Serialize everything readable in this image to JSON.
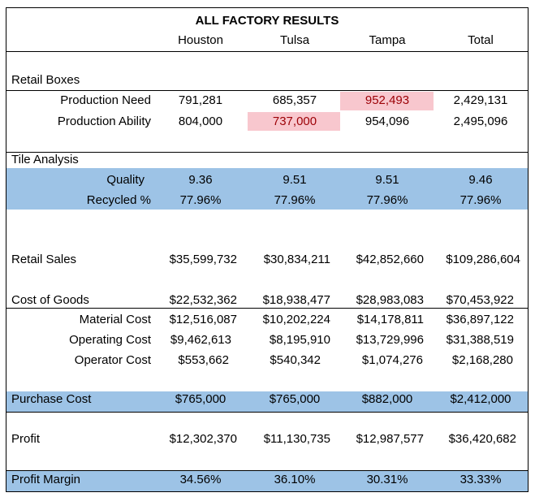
{
  "title": "ALL FACTORY RESULTS",
  "columns": [
    "Houston",
    "Tulsa",
    "Tampa",
    "Total"
  ],
  "colors": {
    "band": "#9dc3e6",
    "highlight_fill": "#f8c7ce",
    "highlight_text": "#9c0006"
  },
  "retail_boxes": {
    "label": "Retail Boxes",
    "production_need": {
      "label": "Production Need",
      "values": [
        "791,281",
        "685,357",
        "952,493",
        "2,429,131"
      ]
    },
    "production_ability": {
      "label": "Production Ability",
      "values": [
        "804,000",
        "737,000",
        "954,096",
        "2,495,096"
      ]
    }
  },
  "tile_analysis": {
    "label": "Tile Analysis",
    "quality": {
      "label": "Quality",
      "values": [
        "9.36",
        "9.51",
        "9.51",
        "9.46"
      ]
    },
    "recycled": {
      "label": "Recycled %",
      "values": [
        "77.96%",
        "77.96%",
        "77.96%",
        "77.96%"
      ]
    }
  },
  "retail_sales": {
    "label": "Retail Sales",
    "values": [
      "$35,599,732",
      "$30,834,211",
      "$42,852,660",
      "$109,286,604"
    ]
  },
  "cost_of_goods": {
    "label": "Cost of Goods",
    "values": [
      "$22,532,362",
      "$18,938,477",
      "$28,983,083",
      "$70,453,922"
    ]
  },
  "material_cost": {
    "label": "Material Cost",
    "values": [
      "$12,516,087",
      "$10,202,224",
      "$14,178,811",
      "$36,897,122"
    ]
  },
  "operating_cost": {
    "label": "Operating Cost",
    "values": [
      "$9,462,613",
      "$8,195,910",
      "$13,729,996",
      "$31,388,519"
    ]
  },
  "operator_cost": {
    "label": "Operator Cost",
    "values": [
      "$553,662",
      "$540,342",
      "$1,074,276",
      "$2,168,280"
    ]
  },
  "purchase_cost": {
    "label": "Purchase Cost",
    "values": [
      "$765,000",
      "$765,000",
      "$882,000",
      "$2,412,000"
    ]
  },
  "profit": {
    "label": "Profit",
    "values": [
      "$12,302,370",
      "$11,130,735",
      "$12,987,577",
      "$36,420,682"
    ]
  },
  "profit_margin": {
    "label": "Profit Margin",
    "values": [
      "34.56%",
      "36.10%",
      "30.31%",
      "33.33%"
    ]
  }
}
